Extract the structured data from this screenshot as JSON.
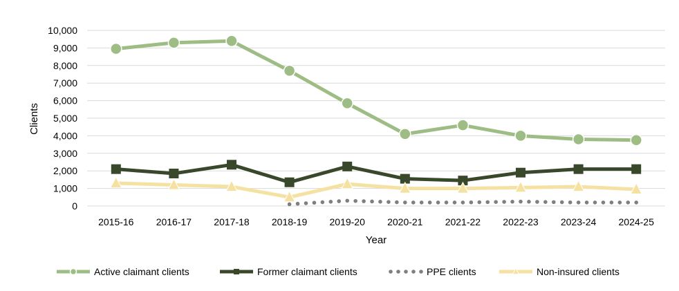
{
  "chart_data": {
    "type": "line",
    "title": "",
    "xlabel": "Year",
    "ylabel": "Clients",
    "ylim": [
      0,
      10000
    ],
    "yticks": [
      0,
      1000,
      2000,
      3000,
      4000,
      5000,
      6000,
      7000,
      8000,
      9000,
      10000
    ],
    "ytick_labels": [
      "0",
      "1,000",
      "2,000",
      "3,000",
      "4,000",
      "5,000",
      "6,000",
      "7,000",
      "8,000",
      "9,000",
      "10,000"
    ],
    "grid": true,
    "legend_position": "bottom",
    "categories": [
      "2015-16",
      "2016-17",
      "2017-18",
      "2018-19",
      "2019-20",
      "2020-21",
      "2021-22",
      "2022-23",
      "2023-24",
      "2024-25"
    ],
    "series": [
      {
        "name": "Active claimant clients",
        "color": "#9dbd84",
        "marker": "circle",
        "line": "solid",
        "values": [
          8950,
          9300,
          9400,
          7700,
          5850,
          4100,
          4600,
          4000,
          3800,
          3750
        ]
      },
      {
        "name": "Former claimant clients",
        "color": "#39472a",
        "marker": "square",
        "line": "solid",
        "values": [
          2100,
          1850,
          2350,
          1350,
          2250,
          1550,
          1450,
          1900,
          2100,
          2100
        ]
      },
      {
        "name": "PPE clients",
        "color": "#7f7f7f",
        "marker": "none",
        "line": "dotted",
        "values": [
          null,
          null,
          null,
          100,
          300,
          200,
          200,
          250,
          200,
          200
        ]
      },
      {
        "name": "Non-insured clients",
        "color": "#f5e1a1",
        "marker": "triangle",
        "line": "solid",
        "values": [
          1300,
          1200,
          1100,
          500,
          1250,
          1000,
          1000,
          1050,
          1100,
          950
        ]
      }
    ]
  }
}
